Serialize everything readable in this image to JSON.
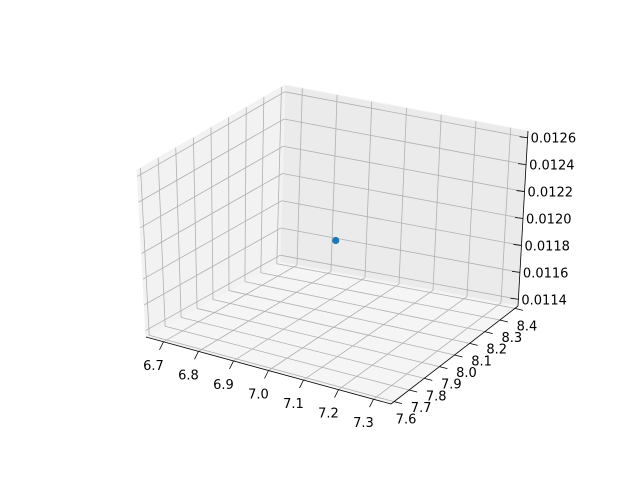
{
  "chart_data": {
    "type": "scatter",
    "projection": "3d",
    "title": "",
    "xlabel": "",
    "ylabel": "",
    "zlabel": "",
    "grid": true,
    "xticks": [
      "6.7",
      "6.8",
      "6.9",
      "7.0",
      "7.1",
      "7.2",
      "7.3"
    ],
    "yticks": [
      "7.6",
      "7.7",
      "7.8",
      "7.9",
      "8.0",
      "8.1",
      "8.2",
      "8.3",
      "8.4"
    ],
    "zticks": [
      "0.0114",
      "0.0116",
      "0.0118",
      "0.0120",
      "0.0122",
      "0.0124",
      "0.0126"
    ],
    "xlim": [
      6.65,
      7.35
    ],
    "ylim": [
      7.58,
      8.42
    ],
    "zlim": [
      0.01135,
      0.01265
    ],
    "points": [
      {
        "x": 7.0,
        "y": 8.0,
        "z": 0.012
      }
    ],
    "marker_color": "#1f77b4"
  }
}
